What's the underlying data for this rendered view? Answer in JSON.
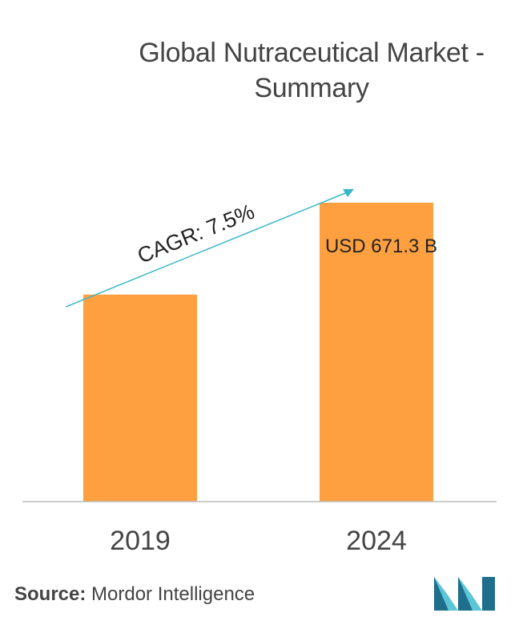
{
  "title_line1": "Global Nutraceutical Market -",
  "title_line2": "Summary",
  "source_label": "Source:",
  "source_name": "Mordor Intelligence",
  "logo_icon": "mordor-intelligence-logo",
  "colors": {
    "bar": "#FFA040",
    "arrow": "#3BB6C6",
    "axis": "#BBBBBB",
    "text": "#333333",
    "logo_dark": "#1E6E8C",
    "logo_light": "#5CC6D6"
  },
  "chart_data": {
    "type": "bar",
    "title": "Global Nutraceutical Market - Summary",
    "categories": [
      "2019",
      "2024"
    ],
    "values": [
      465,
      671.3
    ],
    "value_labels": [
      "",
      "USD 671.3 B"
    ],
    "ylim": [
      0,
      700
    ],
    "grid": false,
    "legend": "none",
    "annotation": "CAGR: 7.5%"
  }
}
